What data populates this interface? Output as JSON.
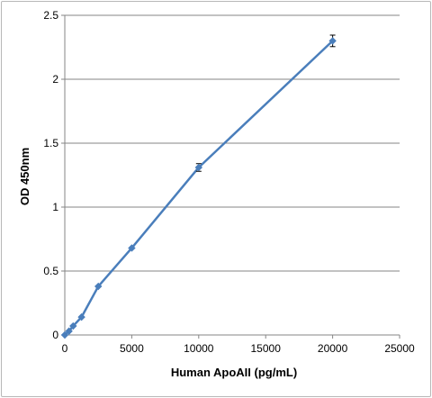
{
  "chart_data": {
    "type": "line",
    "title": "",
    "xlabel": "Human ApoAII (pg/mL)",
    "ylabel": "OD 450nm",
    "xlim": [
      0,
      25000
    ],
    "ylim": [
      0,
      2.5
    ],
    "x_ticks": [
      "0",
      "5000",
      "10000",
      "15000",
      "20000",
      "25000"
    ],
    "y_ticks": [
      "0",
      "0.5",
      "1",
      "1.5",
      "2",
      "2.5"
    ],
    "grid": "horizontal",
    "legend": "none",
    "series": [
      {
        "color": "#4a7ebb",
        "marker": "diamond",
        "points": [
          {
            "x": 0,
            "y": 0.0,
            "err": 0.005
          },
          {
            "x": 312.5,
            "y": 0.03,
            "err": 0.005
          },
          {
            "x": 625,
            "y": 0.07,
            "err": 0.005
          },
          {
            "x": 1250,
            "y": 0.14,
            "err": 0.005
          },
          {
            "x": 2500,
            "y": 0.38,
            "err": 0.007
          },
          {
            "x": 5000,
            "y": 0.68,
            "err": 0.007
          },
          {
            "x": 10000,
            "y": 1.31,
            "err": 0.03
          },
          {
            "x": 20000,
            "y": 2.3,
            "err": 0.045
          }
        ]
      }
    ]
  }
}
